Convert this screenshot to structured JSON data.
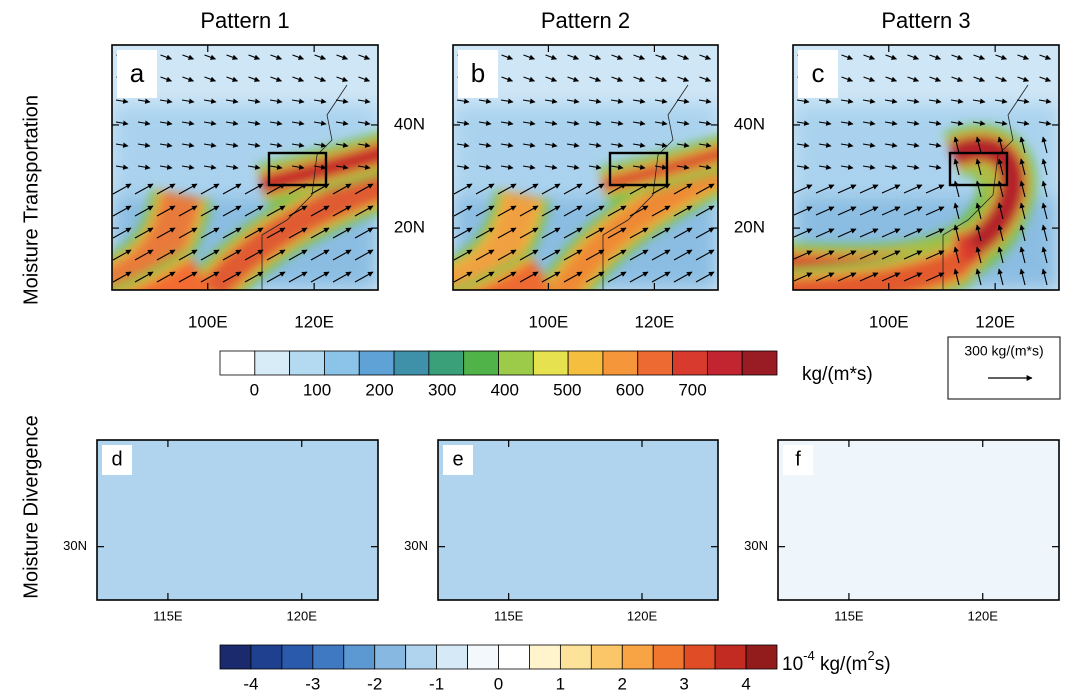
{
  "row_labels": [
    "Moisture Transportation",
    "Moisture Divergence"
  ],
  "top_panels": [
    {
      "title": "Pattern 1",
      "label": "a"
    },
    {
      "title": "Pattern 2",
      "label": "b"
    },
    {
      "title": "Pattern 3",
      "label": "c"
    }
  ],
  "bottom_panels": [
    {
      "label": "d"
    },
    {
      "label": "e"
    },
    {
      "label": "f"
    }
  ],
  "top_axes": {
    "xlim": [
      82,
      132
    ],
    "ylim": [
      8,
      55.5
    ],
    "xticks": [
      {
        "value": 100,
        "label": "100E"
      },
      {
        "value": 120,
        "label": "120E"
      }
    ],
    "yticks": [
      {
        "value": 20,
        "label": "20N"
      },
      {
        "value": 40,
        "label": "40N"
      }
    ]
  },
  "bottom_axes": {
    "xlim": [
      112.35,
      122.85
    ],
    "ylim": [
      28,
      34
    ],
    "xticks": [
      {
        "value": 115,
        "label": "115E"
      },
      {
        "value": 120,
        "label": "120E"
      }
    ],
    "yticks": [
      {
        "value": 30,
        "label": "30N"
      }
    ]
  },
  "colorbar_top": {
    "colors": [
      "#ffffff",
      "#d8ecf8",
      "#b4daf1",
      "#8cc3e8",
      "#5fa3d6",
      "#3e91a8",
      "#3aa07a",
      "#4fb34a",
      "#9ccb4a",
      "#e6e14f",
      "#f5be3f",
      "#f5963a",
      "#ee6a33",
      "#d93a2e",
      "#c22530",
      "#991c24"
    ],
    "clim": [
      -55,
      835
    ],
    "ticks": [
      0,
      100,
      200,
      300,
      400,
      500,
      600,
      700
    ],
    "unit": "kg/(m*s)"
  },
  "vector_reference": "300 kg/(m*s)",
  "colorbar_bottom": {
    "colors": [
      "#1a2a6c",
      "#1f3f8f",
      "#2a5aab",
      "#3f79c2",
      "#5c98d2",
      "#86b8e2",
      "#b0d3ee",
      "#d6e9f7",
      "#f2f8fc",
      "#ffffff",
      "#fff4cc",
      "#fde29a",
      "#fbc667",
      "#f8a344",
      "#f1772f",
      "#e04c26",
      "#c22b22",
      "#921b1c"
    ],
    "clim": [
      -4.5,
      4.5
    ],
    "ticks": [
      -4,
      -3,
      -2,
      -1,
      0,
      1,
      2,
      3,
      4
    ],
    "unit_base": "10",
    "unit_exponent": "-4",
    "unit_middle": " kg/(m",
    "unit_exponent_2": "2",
    "unit_end": "s)"
  }
}
